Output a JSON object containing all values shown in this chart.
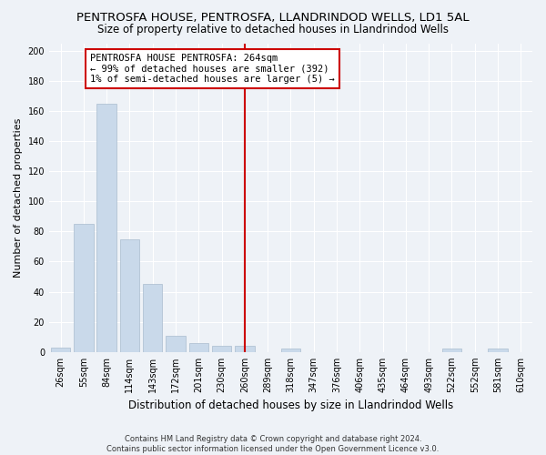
{
  "title": "PENTROSFA HOUSE, PENTROSFA, LLANDRINDOD WELLS, LD1 5AL",
  "subtitle": "Size of property relative to detached houses in Llandrindod Wells",
  "xlabel": "Distribution of detached houses by size in Llandrindod Wells",
  "ylabel": "Number of detached properties",
  "footer_line1": "Contains HM Land Registry data © Crown copyright and database right 2024.",
  "footer_line2": "Contains public sector information licensed under the Open Government Licence v3.0.",
  "categories": [
    "26sqm",
    "55sqm",
    "84sqm",
    "114sqm",
    "143sqm",
    "172sqm",
    "201sqm",
    "230sqm",
    "260sqm",
    "289sqm",
    "318sqm",
    "347sqm",
    "376sqm",
    "406sqm",
    "435sqm",
    "464sqm",
    "493sqm",
    "522sqm",
    "552sqm",
    "581sqm",
    "610sqm"
  ],
  "values": [
    3,
    85,
    165,
    75,
    45,
    11,
    6,
    4,
    4,
    0,
    2,
    0,
    0,
    0,
    0,
    0,
    0,
    2,
    0,
    2,
    0
  ],
  "bar_color": "#c9d9ea",
  "bar_edge_color": "#aabcce",
  "vline_x_index": 8,
  "vline_color": "#cc0000",
  "annotation_text": "PENTROSFA HOUSE PENTROSFA: 264sqm\n← 99% of detached houses are smaller (392)\n1% of semi-detached houses are larger (5) →",
  "annotation_box_color": "#cc0000",
  "bg_color": "#eef2f7",
  "grid_color": "#ffffff",
  "ylim": [
    0,
    205
  ],
  "yticks": [
    0,
    20,
    40,
    60,
    80,
    100,
    120,
    140,
    160,
    180,
    200
  ],
  "title_fontsize": 9.5,
  "subtitle_fontsize": 8.5,
  "xlabel_fontsize": 8.5,
  "ylabel_fontsize": 8,
  "tick_fontsize": 7,
  "annotation_fontsize": 7.5,
  "footer_fontsize": 6
}
